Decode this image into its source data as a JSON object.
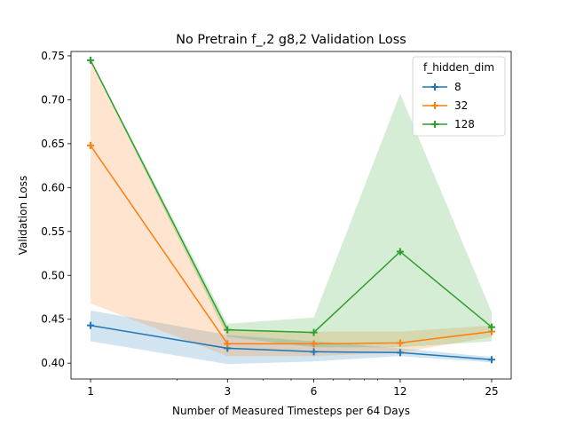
{
  "chart_data": {
    "type": "line",
    "title": "No Pretrain f_,2 g8,2 Validation Loss",
    "xlabel": "Number of Measured Timesteps per 64 Days",
    "ylabel": "Validation Loss",
    "xscale": "log",
    "x": [
      1,
      3,
      6,
      12,
      25
    ],
    "xtick_labels": [
      "1",
      "3",
      "6",
      "12",
      "25"
    ],
    "ylim": [
      0.382,
      0.755
    ],
    "yticks": [
      0.4,
      0.45,
      0.5,
      0.55,
      0.6,
      0.65,
      0.7,
      0.75
    ],
    "ytick_labels": [
      "0.40",
      "0.45",
      "0.50",
      "0.55",
      "0.60",
      "0.65",
      "0.70",
      "0.75"
    ],
    "grid": false,
    "legend": {
      "title": "f_hidden_dim",
      "placement": "top-right"
    },
    "series": [
      {
        "name": "8",
        "color": "#1f77b4",
        "values": [
          0.443,
          0.417,
          0.413,
          0.412,
          0.404
        ],
        "band_low": [
          0.425,
          0.399,
          0.402,
          0.408,
          0.401
        ],
        "band_high": [
          0.46,
          0.432,
          0.425,
          0.417,
          0.407
        ]
      },
      {
        "name": "32",
        "color": "#ff7f0e",
        "values": [
          0.648,
          0.422,
          0.422,
          0.423,
          0.436
        ],
        "band_low": [
          0.468,
          0.408,
          0.408,
          0.412,
          0.43
        ],
        "band_high": [
          0.745,
          0.438,
          0.436,
          0.436,
          0.443
        ]
      },
      {
        "name": "128",
        "color": "#2ca02c",
        "values": [
          0.745,
          0.438,
          0.435,
          0.527,
          0.441
        ],
        "band_low": [
          0.744,
          0.43,
          0.418,
          0.418,
          0.425
        ],
        "band_high": [
          0.746,
          0.445,
          0.452,
          0.707,
          0.458
        ]
      }
    ]
  }
}
